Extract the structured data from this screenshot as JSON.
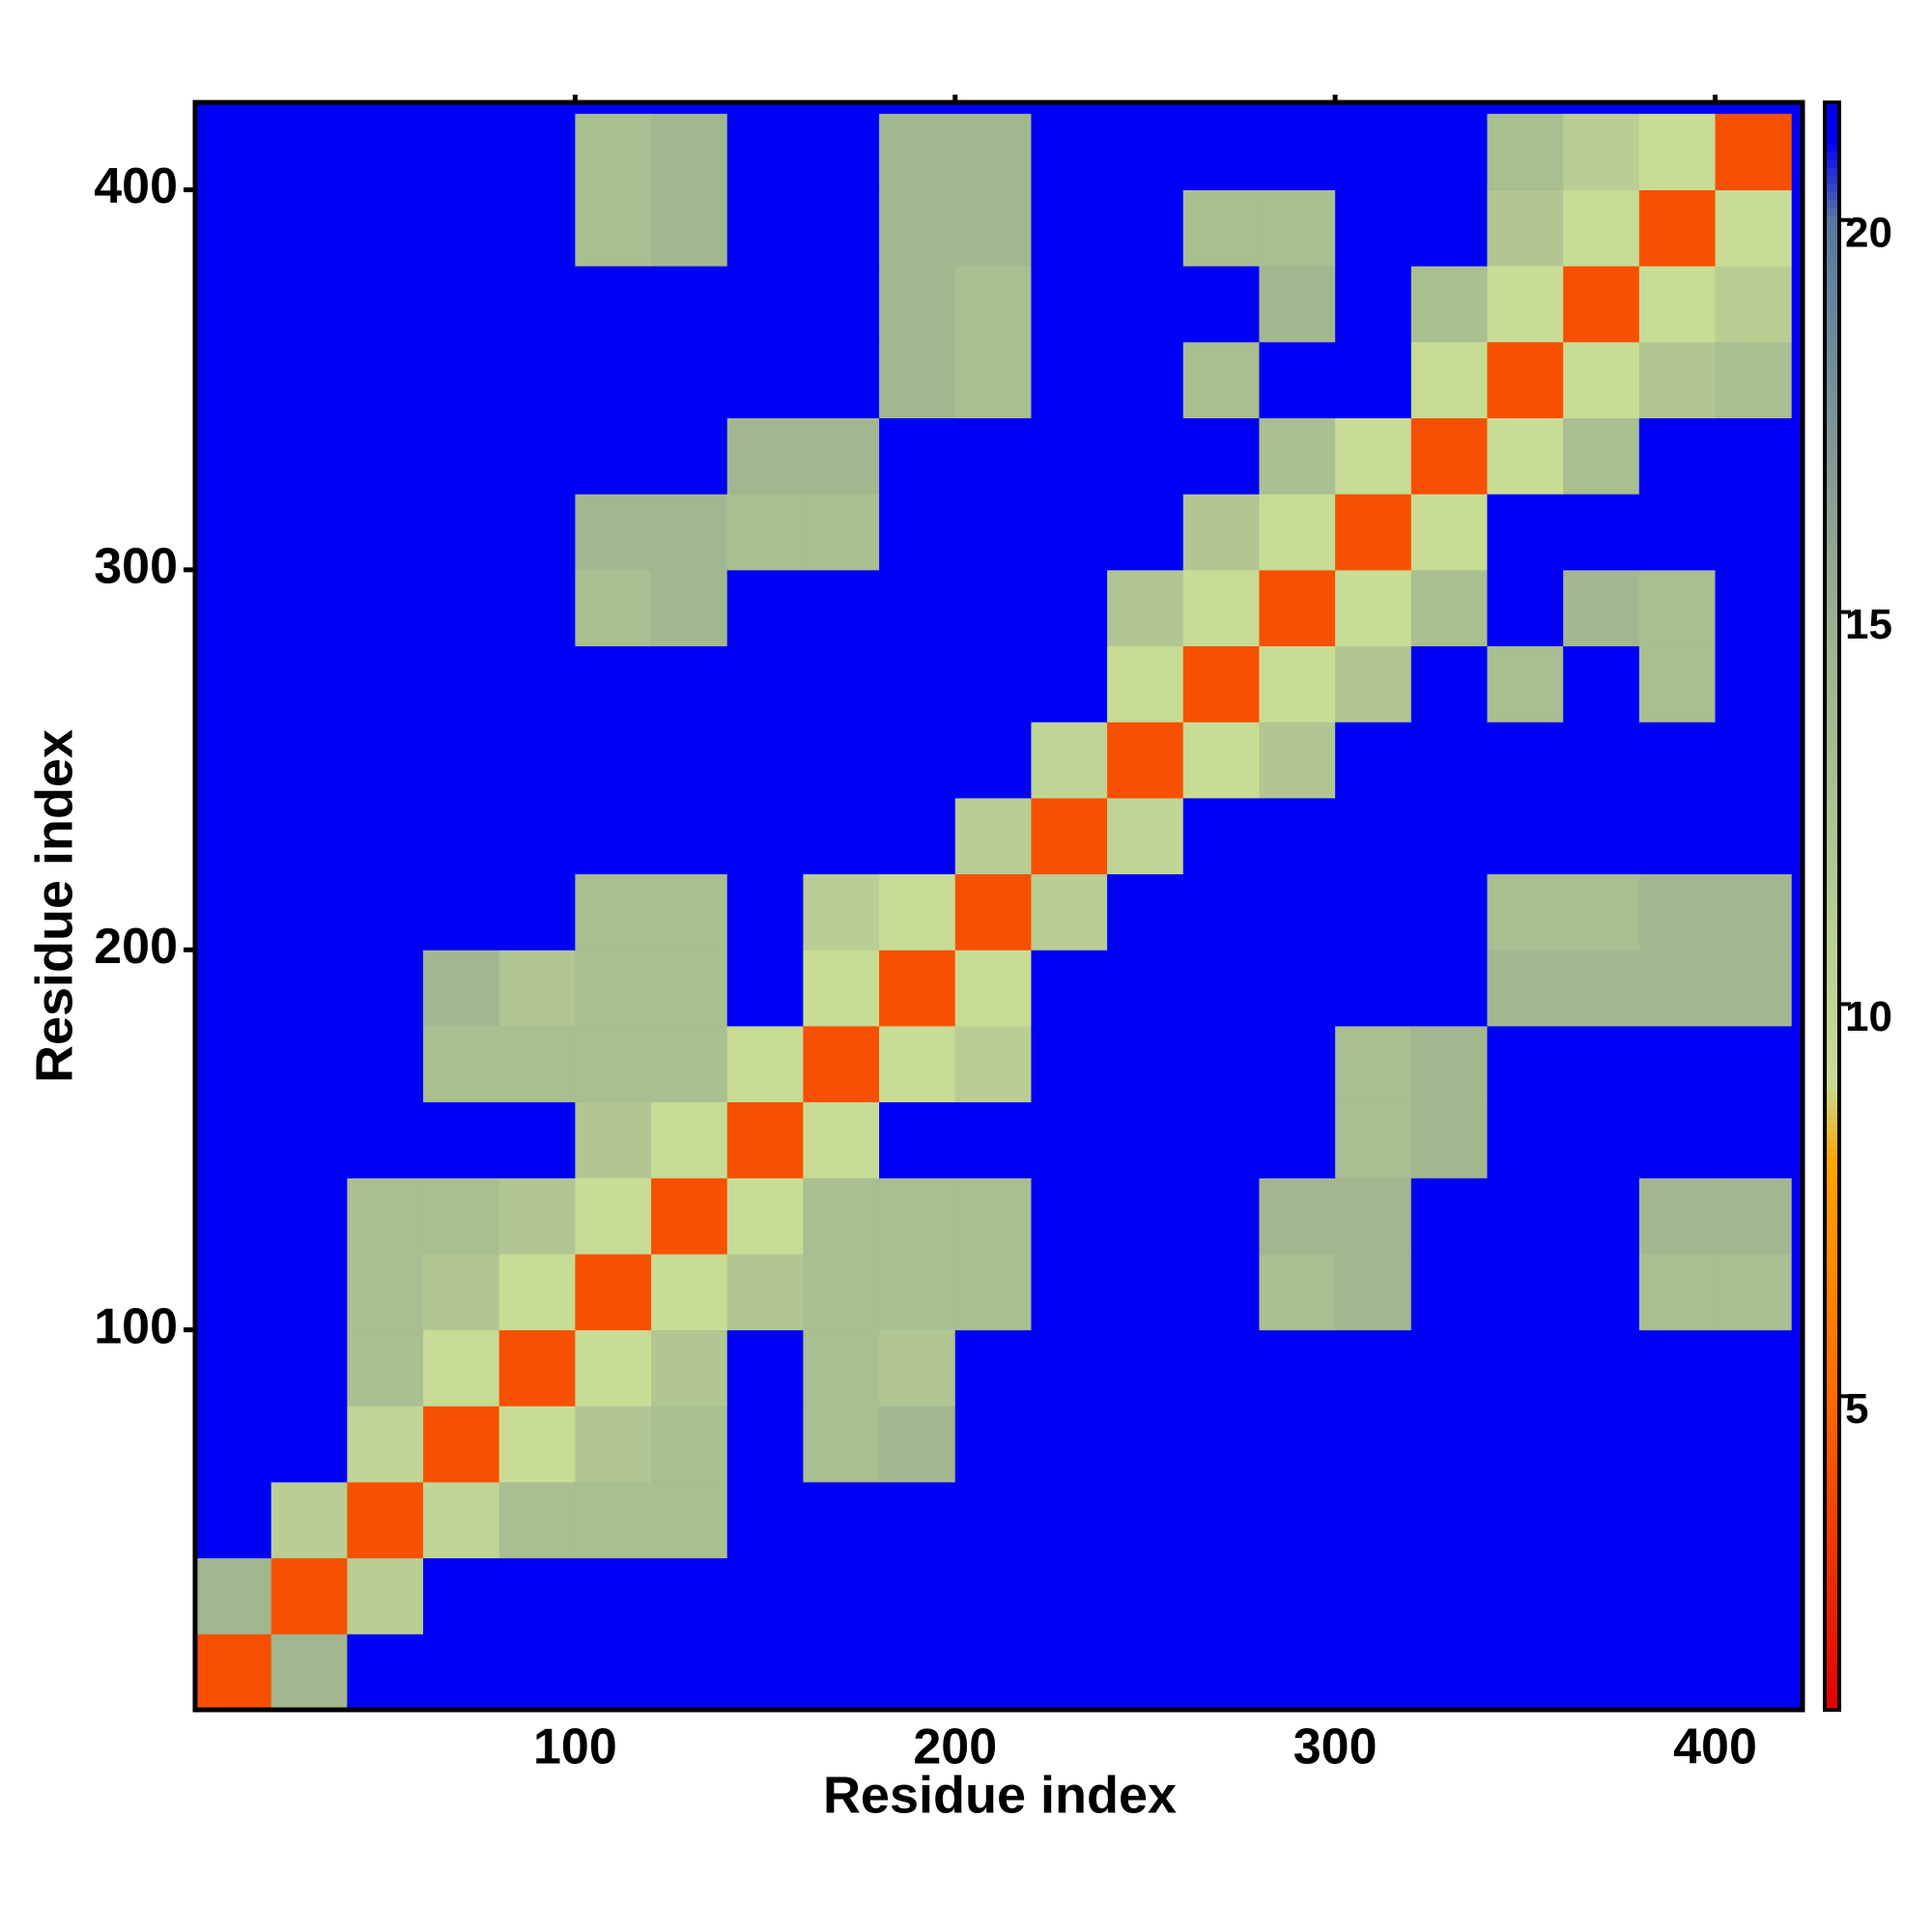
{
  "chart_data": {
    "type": "heatmap",
    "x_label": "Residue index",
    "y_label": "Residue index",
    "bins": [
      0,
      20,
      40,
      60,
      80,
      100,
      120,
      140,
      160,
      180,
      200,
      220,
      240,
      260,
      280,
      300,
      320,
      340,
      360,
      380,
      400,
      420
    ],
    "xlim": [
      0,
      423
    ],
    "ylim": [
      0,
      423
    ],
    "xticks": [
      100,
      200,
      300,
      400
    ],
    "yticks": [
      100,
      200,
      300,
      400
    ],
    "values": [
      [
        4,
        14,
        21,
        21,
        21,
        21,
        21,
        21,
        21,
        21,
        21,
        21,
        21,
        21,
        21,
        21,
        21,
        21,
        21,
        21,
        21
      ],
      [
        14,
        4,
        11,
        21,
        21,
        21,
        21,
        21,
        21,
        21,
        21,
        21,
        21,
        21,
        21,
        21,
        21,
        21,
        21,
        21,
        21
      ],
      [
        21,
        11,
        4,
        10,
        13,
        13,
        13,
        21,
        21,
        21,
        21,
        21,
        21,
        21,
        21,
        21,
        21,
        21,
        21,
        21,
        21
      ],
      [
        21,
        21,
        10,
        4,
        9,
        12,
        13,
        21,
        13,
        14,
        21,
        21,
        21,
        21,
        21,
        21,
        21,
        21,
        21,
        21,
        21
      ],
      [
        21,
        21,
        13,
        9,
        4,
        9,
        12,
        21,
        13,
        12,
        21,
        21,
        21,
        21,
        21,
        21,
        21,
        21,
        21,
        21,
        21
      ],
      [
        21,
        21,
        13,
        12,
        9,
        4,
        9,
        12,
        13,
        13,
        13,
        21,
        21,
        21,
        13,
        14,
        21,
        21,
        21,
        13,
        13
      ],
      [
        21,
        21,
        13,
        13,
        12,
        9,
        4,
        9,
        13,
        13,
        13,
        21,
        21,
        21,
        14,
        14,
        21,
        21,
        21,
        14,
        14
      ],
      [
        21,
        21,
        21,
        21,
        21,
        12,
        9,
        4,
        9,
        21,
        21,
        21,
        21,
        21,
        21,
        13,
        14,
        21,
        21,
        21,
        21
      ],
      [
        21,
        21,
        21,
        13,
        13,
        13,
        13,
        9,
        4,
        9,
        11,
        21,
        21,
        21,
        21,
        13,
        14,
        21,
        21,
        21,
        21
      ],
      [
        21,
        21,
        21,
        14,
        12,
        13,
        13,
        21,
        9,
        4,
        9,
        21,
        21,
        21,
        21,
        21,
        21,
        14,
        14,
        14,
        14
      ],
      [
        21,
        21,
        21,
        21,
        21,
        13,
        13,
        21,
        11,
        9,
        4,
        11,
        21,
        21,
        21,
        21,
        21,
        13,
        13,
        14,
        14
      ],
      [
        21,
        21,
        21,
        21,
        21,
        21,
        21,
        21,
        21,
        21,
        11,
        4,
        10,
        21,
        21,
        21,
        21,
        21,
        21,
        21,
        21
      ],
      [
        21,
        21,
        21,
        21,
        21,
        21,
        21,
        21,
        21,
        21,
        21,
        10,
        4,
        9,
        12,
        21,
        21,
        21,
        21,
        21,
        21
      ],
      [
        21,
        21,
        21,
        21,
        21,
        21,
        21,
        21,
        21,
        21,
        21,
        21,
        9,
        4,
        9,
        12,
        21,
        13,
        21,
        13,
        21
      ],
      [
        21,
        21,
        21,
        21,
        21,
        13,
        14,
        21,
        21,
        21,
        21,
        21,
        12,
        9,
        4,
        9,
        13,
        21,
        14,
        13,
        21
      ],
      [
        21,
        21,
        21,
        21,
        21,
        14,
        14,
        13,
        13,
        21,
        21,
        21,
        21,
        12,
        9,
        4,
        9,
        21,
        21,
        21,
        21
      ],
      [
        21,
        21,
        21,
        21,
        21,
        21,
        21,
        14,
        14,
        21,
        21,
        21,
        21,
        21,
        13,
        9,
        4,
        9,
        13,
        21,
        21
      ],
      [
        21,
        21,
        21,
        21,
        21,
        21,
        21,
        21,
        21,
        14,
        13,
        21,
        21,
        13,
        21,
        21,
        9,
        4,
        9,
        12,
        13
      ],
      [
        21,
        21,
        21,
        21,
        21,
        21,
        21,
        21,
        21,
        14,
        13,
        21,
        21,
        21,
        14,
        21,
        13,
        9,
        4,
        9,
        11
      ],
      [
        21,
        21,
        21,
        21,
        21,
        13,
        14,
        21,
        21,
        14,
        14,
        21,
        21,
        13,
        13,
        21,
        21,
        12,
        9,
        4,
        9
      ],
      [
        21,
        21,
        21,
        21,
        21,
        13,
        14,
        21,
        21,
        14,
        14,
        21,
        21,
        21,
        21,
        21,
        21,
        13,
        11,
        9,
        4
      ]
    ],
    "colorscale": [
      [
        1,
        "#e00000"
      ],
      [
        5,
        "#ff6a00"
      ],
      [
        8,
        "#ffa500"
      ],
      [
        9,
        "#c8dc96"
      ],
      [
        15,
        "#9aaf8f"
      ],
      [
        20,
        "#5a78a0"
      ],
      [
        21,
        "#0000f5"
      ]
    ],
    "colorbar_lim": [
      1,
      21.5
    ],
    "colorbar_ticks": [
      5,
      10,
      15,
      20
    ]
  }
}
